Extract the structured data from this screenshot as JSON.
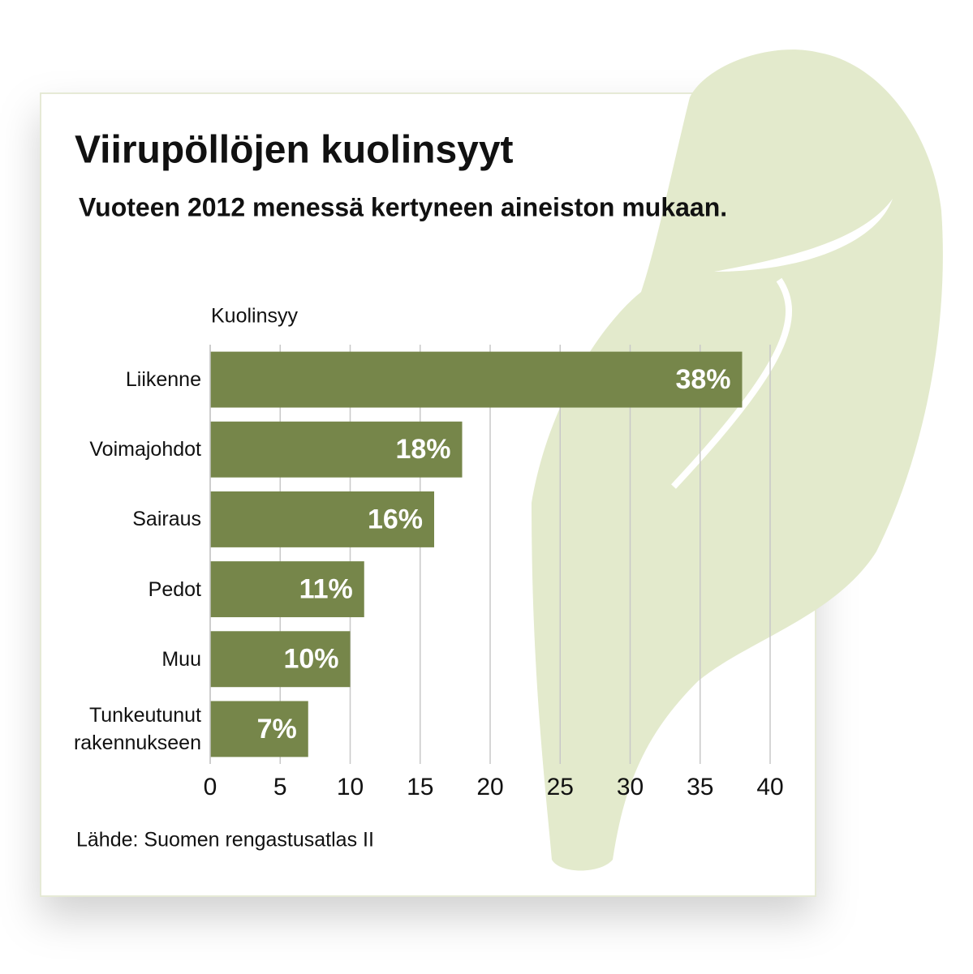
{
  "chart_data": {
    "type": "bar",
    "orientation": "horizontal",
    "title": "Viirupöllöjen kuolinsyyt",
    "subtitle": "Vuoteen 2012 menessä kertyneen aineiston mukaan.",
    "y_label": "Kuolinsyy",
    "source": "Lähde: Suomen rengastusatlas II",
    "categories": [
      "Liikenne",
      "Voimajohdot",
      "Sairaus",
      "Pedot",
      "Muu",
      "Tunkeutunut rakennukseen"
    ],
    "values": [
      38,
      18,
      16,
      11,
      10,
      7
    ],
    "value_labels": [
      "38%",
      "18%",
      "16%",
      "11%",
      "10%",
      "7%"
    ],
    "color": "#76864a",
    "xlim": [
      0,
      40
    ],
    "xticks": [
      0,
      5,
      10,
      15,
      20,
      25,
      30,
      35,
      40
    ],
    "grid": true
  }
}
